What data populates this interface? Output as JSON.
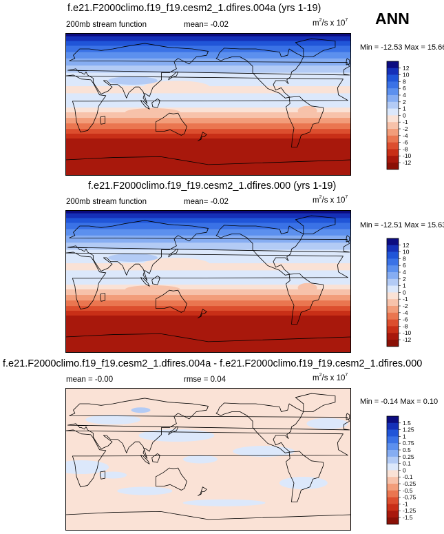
{
  "season": "ANN",
  "panels": [
    {
      "id": "top",
      "title": "f.e21.F2000climo.f19_f19.cesm2_1.dfires.004a (yrs 1-19)",
      "left_label": "200mb stream function",
      "mean_label": "mean=",
      "mean_value": "-0.02",
      "units_base": "m",
      "units_exp1": "2",
      "units_mid": "/s x 10",
      "units_exp2": "7",
      "minmax": "Min = -12.53 Max =  15.66"
    },
    {
      "id": "middle",
      "title": "f.e21.F2000climo.f19_f19.cesm2_1.dfires.000 (yrs 1-19)",
      "left_label": "200mb stream function",
      "mean_label": "mean=",
      "mean_value": "-0.02",
      "units_base": "m",
      "units_exp1": "2",
      "units_mid": "/s x 10",
      "units_exp2": "7",
      "minmax": "Min = -12.51 Max =  15.63"
    },
    {
      "id": "bottom",
      "title": "f.e21.F2000climo.f19_f19.cesm2_1.dfires.004a - f.e21.F2000climo.f19_f19.cesm2_1.dfires.000",
      "left_label": "mean =  -0.00",
      "rmse_label": "rmse =  0.04",
      "units_base": "m",
      "units_exp1": "2",
      "units_mid": "/s x 10",
      "units_exp2": "7",
      "minmax": "Min = -0.14 Max =  0.10"
    }
  ],
  "chart_data": [
    {
      "type": "heatmap",
      "title": "f.e21.F2000climo.f19_f19.cesm2_1.dfires.004a (yrs 1-19)",
      "variable": "200mb stream function",
      "units": "m2/s x 10^7",
      "mean": -0.02,
      "min": -12.53,
      "max": 15.66,
      "colorbar_levels": [
        "12",
        "10",
        "8",
        "6",
        "4",
        "2",
        "1",
        "0",
        "-1",
        "-2",
        "-4",
        "-6",
        "-8",
        "-10",
        "-12"
      ],
      "colors": [
        "#0c0c80",
        "#1530b8",
        "#2055d8",
        "#3a72e6",
        "#5c90ee",
        "#86adf2",
        "#b3cbf5",
        "#dce8fb",
        "#fae2d6",
        "#f7c2aa",
        "#f29d7a",
        "#ea7650",
        "#dc4e2e",
        "#c82f17",
        "#a8180c",
        "#8a1006"
      ]
    },
    {
      "type": "heatmap",
      "title": "f.e21.F2000climo.f19_f19.cesm2_1.dfires.000 (yrs 1-19)",
      "variable": "200mb stream function",
      "units": "m2/s x 10^7",
      "mean": -0.02,
      "min": -12.51,
      "max": 15.63,
      "colorbar_levels": [
        "12",
        "10",
        "8",
        "6",
        "4",
        "2",
        "1",
        "0",
        "-1",
        "-2",
        "-4",
        "-6",
        "-8",
        "-10",
        "-12"
      ],
      "colors": [
        "#0c0c80",
        "#1530b8",
        "#2055d8",
        "#3a72e6",
        "#5c90ee",
        "#86adf2",
        "#b3cbf5",
        "#dce8fb",
        "#fae2d6",
        "#f7c2aa",
        "#f29d7a",
        "#ea7650",
        "#dc4e2e",
        "#c82f17",
        "#a8180c",
        "#8a1006"
      ]
    },
    {
      "type": "heatmap",
      "title": "f.e21.F2000climo.f19_f19.cesm2_1.dfires.004a - f.e21.F2000climo.f19_f19.cesm2_1.dfires.000",
      "units": "m2/s x 10^7",
      "mean": -0.0,
      "rmse": 0.04,
      "min": -0.14,
      "max": 0.1,
      "colorbar_levels": [
        "1.5",
        "1.25",
        "1",
        "0.75",
        "0.5",
        "0.25",
        "0.1",
        "0",
        "-0.1",
        "-0.25",
        "-0.5",
        "-0.75",
        "-1",
        "-1.25",
        "-1.5"
      ],
      "colors": [
        "#0c0c80",
        "#1530b8",
        "#2055d8",
        "#3a72e6",
        "#5c90ee",
        "#86adf2",
        "#b3cbf5",
        "#dce8fb",
        "#fae2d6",
        "#f7c2aa",
        "#f29d7a",
        "#ea7650",
        "#dc4e2e",
        "#c82f17",
        "#a8180c",
        "#8a1006"
      ]
    }
  ]
}
